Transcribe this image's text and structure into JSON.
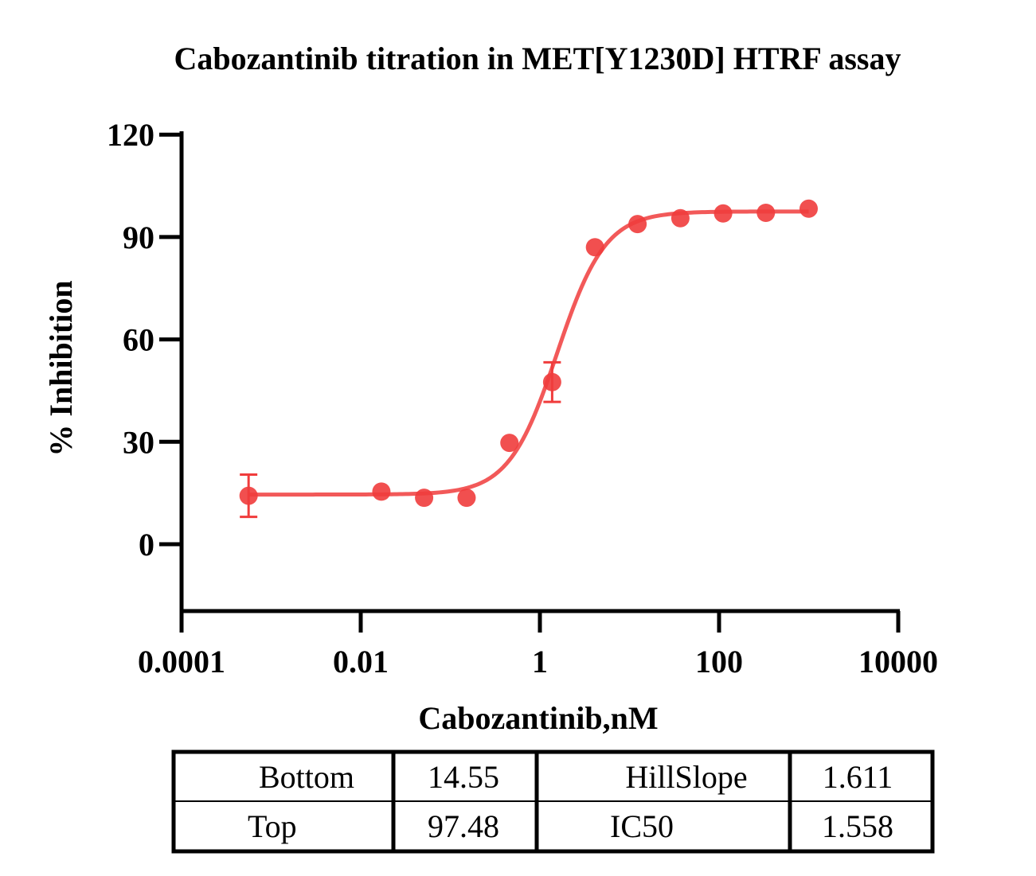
{
  "chart_data": {
    "type": "scatter",
    "title": "Cabozantinib titration in MET[Y1230D] HTRF assay",
    "xlabel": "Cabozantinib,nM",
    "ylabel": "% Inhibition",
    "xscale": "log",
    "xlim": [
      0.0001,
      10000
    ],
    "ylim": [
      -20,
      120
    ],
    "x_ticks": [
      0.0001,
      0.01,
      1,
      100,
      10000
    ],
    "x_tick_labels": [
      "0.0001",
      "0.01",
      "1",
      "100",
      "10000"
    ],
    "y_ticks": [
      0,
      30,
      60,
      90,
      120
    ],
    "y_tick_labels": [
      "0",
      "30",
      "60",
      "90",
      "120"
    ],
    "color": "#f03c3c",
    "series": [
      {
        "name": "MET[Y1230D]",
        "points": [
          {
            "x": 0.00056,
            "y": 14.2,
            "err": 6.2
          },
          {
            "x": 0.017,
            "y": 15.4,
            "err": 0
          },
          {
            "x": 0.051,
            "y": 13.6,
            "err": 0
          },
          {
            "x": 0.152,
            "y": 13.6,
            "err": 0
          },
          {
            "x": 0.457,
            "y": 29.7,
            "err": 0
          },
          {
            "x": 1.37,
            "y": 47.5,
            "err": 5.8
          },
          {
            "x": 4.12,
            "y": 87.0,
            "err": 0
          },
          {
            "x": 12.3,
            "y": 93.8,
            "err": 0
          },
          {
            "x": 37.0,
            "y": 95.5,
            "err": 0
          },
          {
            "x": 111.0,
            "y": 96.9,
            "err": 0
          },
          {
            "x": 333.0,
            "y": 97.1,
            "err": 0
          },
          {
            "x": 1000.0,
            "y": 98.3,
            "err": 0
          }
        ]
      }
    ],
    "fit": {
      "model": "4PL",
      "bottom": 14.55,
      "top": 97.48,
      "hillslope": 1.611,
      "ic50": 1.558
    }
  },
  "table": {
    "rows": [
      {
        "label1": "Bottom",
        "value1": "14.55",
        "label2": "HillSlope",
        "value2": "1.611"
      },
      {
        "label1": "Top",
        "value1": "97.48",
        "label2": "IC50",
        "value2": "1.558"
      }
    ]
  }
}
